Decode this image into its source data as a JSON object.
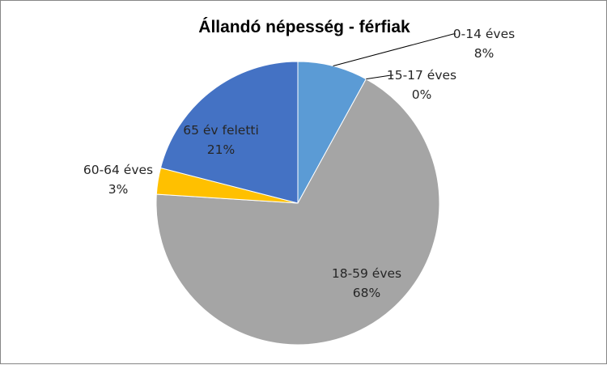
{
  "chart_data": {
    "type": "pie",
    "title": "Állandó népesség - férfiak",
    "legend": "none",
    "slices": [
      {
        "label": "0-14 éves",
        "value": 8,
        "pct_label": "8%",
        "color": "#5B9BD5"
      },
      {
        "label": "15-17 éves",
        "value": 0,
        "pct_label": "0%",
        "color": "#ED7D31"
      },
      {
        "label": "18-59 éves",
        "value": 68,
        "pct_label": "68%",
        "color": "#A5A5A5"
      },
      {
        "label": "60-64 éves",
        "value": 3,
        "pct_label": "3%",
        "color": "#FFC000"
      },
      {
        "label": "65 év feletti",
        "value": 21,
        "pct_label": "21%",
        "color": "#4472C4"
      }
    ]
  }
}
